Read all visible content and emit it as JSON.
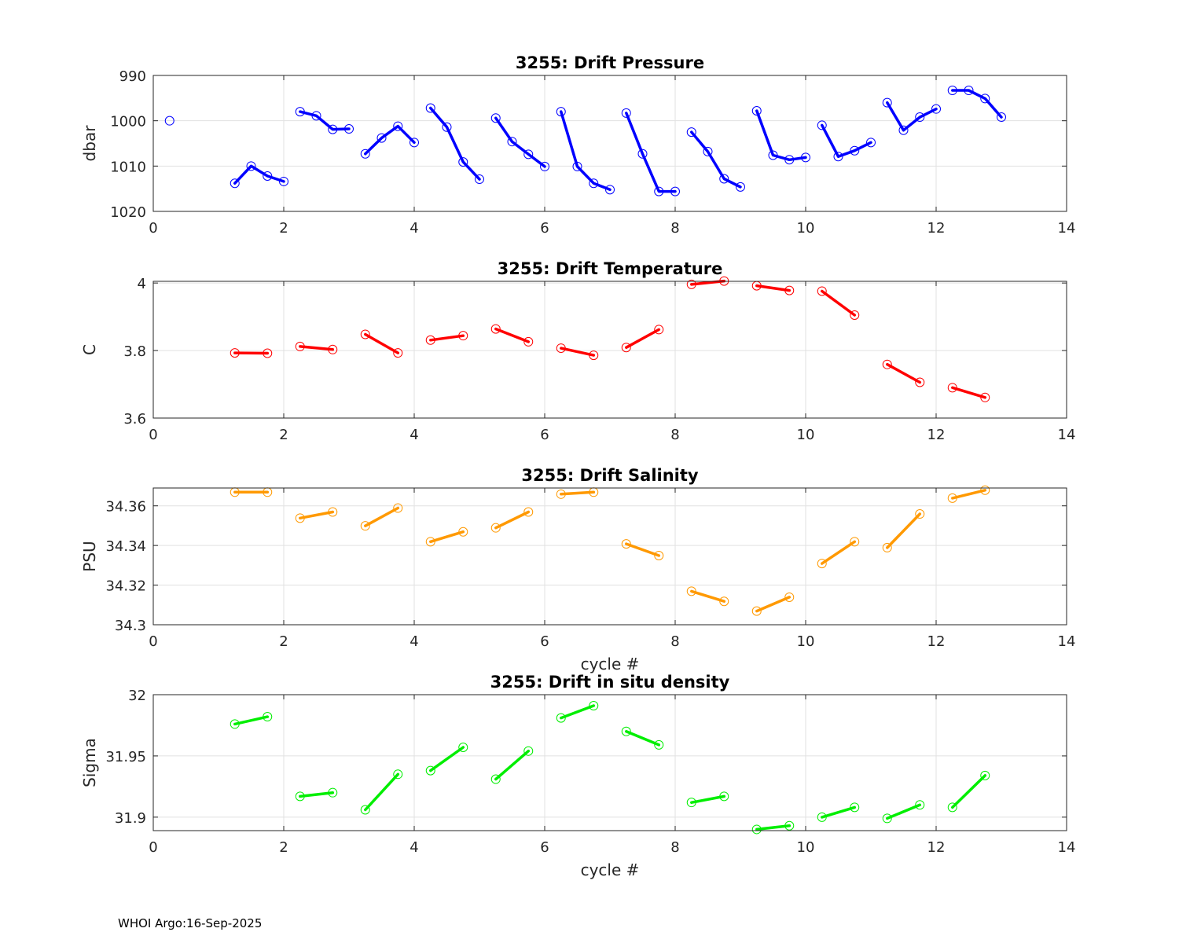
{
  "footer": "WHOI Argo:16-Sep-2025",
  "chart_data": [
    {
      "type": "line",
      "title": "3255: Drift Pressure",
      "xlabel": "",
      "ylabel": "dbar",
      "reversed_y": true,
      "xlim": [
        0,
        14
      ],
      "ylim": [
        990,
        1020
      ],
      "xticks": [
        0,
        2,
        4,
        6,
        8,
        10,
        12,
        14
      ],
      "yticks": [
        990,
        1000,
        1010,
        1020
      ],
      "ytick_labels": [
        "990",
        "1000",
        "1010",
        "1020"
      ],
      "color": "#0000ff",
      "grid": true,
      "segments": [
        [
          [
            0.25,
            1000.0
          ]
        ],
        [
          [
            1.25,
            1013.8
          ],
          [
            1.5,
            1010.0
          ],
          [
            1.75,
            1012.2
          ],
          [
            2.0,
            1013.4
          ]
        ],
        [
          [
            2.25,
            998.0
          ],
          [
            2.5,
            998.9
          ],
          [
            2.75,
            1001.9
          ],
          [
            3.0,
            1001.8
          ]
        ],
        [
          [
            3.25,
            1007.3
          ],
          [
            3.5,
            1003.8
          ],
          [
            3.75,
            1001.2
          ],
          [
            4.0,
            1004.8
          ]
        ],
        [
          [
            4.25,
            997.2
          ],
          [
            4.5,
            1001.4
          ],
          [
            4.75,
            1009.1
          ],
          [
            5.0,
            1012.9
          ]
        ],
        [
          [
            5.25,
            999.4
          ],
          [
            5.5,
            1004.6
          ],
          [
            5.75,
            1007.4
          ],
          [
            6.0,
            1010.1
          ]
        ],
        [
          [
            6.25,
            998.0
          ],
          [
            6.5,
            1010.1
          ],
          [
            6.75,
            1013.8
          ],
          [
            7.0,
            1015.2
          ]
        ],
        [
          [
            7.25,
            998.3
          ],
          [
            7.5,
            1007.3
          ],
          [
            7.75,
            1015.6
          ],
          [
            8.0,
            1015.6
          ]
        ],
        [
          [
            8.25,
            1002.5
          ],
          [
            8.5,
            1006.8
          ],
          [
            8.75,
            1012.8
          ],
          [
            9.0,
            1014.6
          ]
        ],
        [
          [
            9.25,
            997.8
          ],
          [
            9.5,
            1007.6
          ],
          [
            9.75,
            1008.6
          ],
          [
            10.0,
            1008.1
          ]
        ],
        [
          [
            10.25,
            1001.0
          ],
          [
            10.5,
            1007.9
          ],
          [
            10.75,
            1006.6
          ],
          [
            11.0,
            1004.8
          ]
        ],
        [
          [
            11.25,
            996.0
          ],
          [
            11.5,
            1002.1
          ],
          [
            11.75,
            999.2
          ],
          [
            12.0,
            997.4
          ]
        ],
        [
          [
            12.25,
            993.3
          ],
          [
            12.5,
            993.3
          ],
          [
            12.75,
            995.1
          ],
          [
            13.0,
            999.2
          ]
        ]
      ]
    },
    {
      "type": "line",
      "title": "3255: Drift Temperature",
      "xlabel": "",
      "ylabel": "C",
      "reversed_y": false,
      "xlim": [
        0,
        14
      ],
      "ylim": [
        3.6,
        4.005
      ],
      "xticks": [
        0,
        2,
        4,
        6,
        8,
        10,
        12,
        14
      ],
      "yticks": [
        3.6,
        3.8,
        4.0
      ],
      "ytick_labels": [
        "3.6",
        "3.8",
        "4"
      ],
      "color": "#ff0000",
      "grid": true,
      "segments": [
        [
          [
            1.25,
            3.793
          ],
          [
            1.75,
            3.792
          ]
        ],
        [
          [
            2.25,
            3.812
          ],
          [
            2.75,
            3.803
          ]
        ],
        [
          [
            3.25,
            3.848
          ],
          [
            3.75,
            3.793
          ]
        ],
        [
          [
            4.25,
            3.831
          ],
          [
            4.75,
            3.844
          ]
        ],
        [
          [
            5.25,
            3.864
          ],
          [
            5.75,
            3.826
          ]
        ],
        [
          [
            6.25,
            3.807
          ],
          [
            6.75,
            3.786
          ]
        ],
        [
          [
            7.25,
            3.809
          ],
          [
            7.75,
            3.862
          ]
        ],
        [
          [
            8.25,
            3.996
          ],
          [
            8.75,
            4.006
          ]
        ],
        [
          [
            9.25,
            3.992
          ],
          [
            9.75,
            3.978
          ]
        ],
        [
          [
            10.25,
            3.976
          ],
          [
            10.75,
            3.905
          ]
        ],
        [
          [
            11.25,
            3.759
          ],
          [
            11.75,
            3.706
          ]
        ],
        [
          [
            12.25,
            3.69
          ],
          [
            12.75,
            3.661
          ]
        ]
      ]
    },
    {
      "type": "line",
      "title": "3255: Drift Salinity",
      "xlabel": "cycle #",
      "ylabel": "PSU",
      "reversed_y": false,
      "xlim": [
        0,
        14
      ],
      "ylim": [
        34.3,
        34.369
      ],
      "xticks": [
        0,
        2,
        4,
        6,
        8,
        10,
        12,
        14
      ],
      "yticks": [
        34.3,
        34.32,
        34.34,
        34.36
      ],
      "ytick_labels": [
        "34.3",
        "34.32",
        "34.34",
        "34.36"
      ],
      "color": "#ff9900",
      "grid": true,
      "segments": [
        [
          [
            1.25,
            34.3669
          ],
          [
            1.75,
            34.3669
          ]
        ],
        [
          [
            2.25,
            34.3538
          ],
          [
            2.75,
            34.3569
          ]
        ],
        [
          [
            3.25,
            34.3499
          ],
          [
            3.75,
            34.3589
          ]
        ],
        [
          [
            4.25,
            34.3419
          ],
          [
            4.75,
            34.3469
          ]
        ],
        [
          [
            5.25,
            34.3489
          ],
          [
            5.75,
            34.3569
          ]
        ],
        [
          [
            6.25,
            34.3659
          ],
          [
            6.75,
            34.3669
          ]
        ],
        [
          [
            7.25,
            34.3408
          ],
          [
            7.75,
            34.3349
          ]
        ],
        [
          [
            8.25,
            34.3169
          ],
          [
            8.75,
            34.3118
          ]
        ],
        [
          [
            9.25,
            34.3069
          ],
          [
            9.75,
            34.3139
          ]
        ],
        [
          [
            10.25,
            34.3309
          ],
          [
            10.75,
            34.3419
          ]
        ],
        [
          [
            11.25,
            34.3389
          ],
          [
            11.75,
            34.3559
          ]
        ],
        [
          [
            12.25,
            34.3639
          ],
          [
            12.75,
            34.3679
          ]
        ]
      ]
    },
    {
      "type": "line",
      "title": "3255: Drift in situ density",
      "xlabel": "cycle #",
      "ylabel": "Sigma",
      "reversed_y": false,
      "xlim": [
        0,
        14
      ],
      "ylim": [
        31.889,
        32.0
      ],
      "xticks": [
        0,
        2,
        4,
        6,
        8,
        10,
        12,
        14
      ],
      "yticks": [
        31.9,
        31.95,
        32.0
      ],
      "ytick_labels": [
        "31.9",
        "31.95",
        "32"
      ],
      "color": "#00ee00",
      "grid": true,
      "segments": [
        [
          [
            1.25,
            31.976
          ],
          [
            1.75,
            31.982
          ]
        ],
        [
          [
            2.25,
            31.917
          ],
          [
            2.75,
            31.92
          ]
        ],
        [
          [
            3.25,
            31.906
          ],
          [
            3.75,
            31.935
          ]
        ],
        [
          [
            4.25,
            31.938
          ],
          [
            4.75,
            31.957
          ]
        ],
        [
          [
            5.25,
            31.931
          ],
          [
            5.75,
            31.954
          ]
        ],
        [
          [
            6.25,
            31.981
          ],
          [
            6.75,
            31.991
          ]
        ],
        [
          [
            7.25,
            31.97
          ],
          [
            7.75,
            31.959
          ]
        ],
        [
          [
            8.25,
            31.912
          ],
          [
            8.75,
            31.917
          ]
        ],
        [
          [
            9.25,
            31.89
          ],
          [
            9.75,
            31.893
          ]
        ],
        [
          [
            10.25,
            31.9
          ],
          [
            10.75,
            31.908
          ]
        ],
        [
          [
            11.25,
            31.899
          ],
          [
            11.75,
            31.91
          ]
        ],
        [
          [
            12.25,
            31.908
          ],
          [
            12.75,
            31.934
          ]
        ]
      ]
    }
  ]
}
